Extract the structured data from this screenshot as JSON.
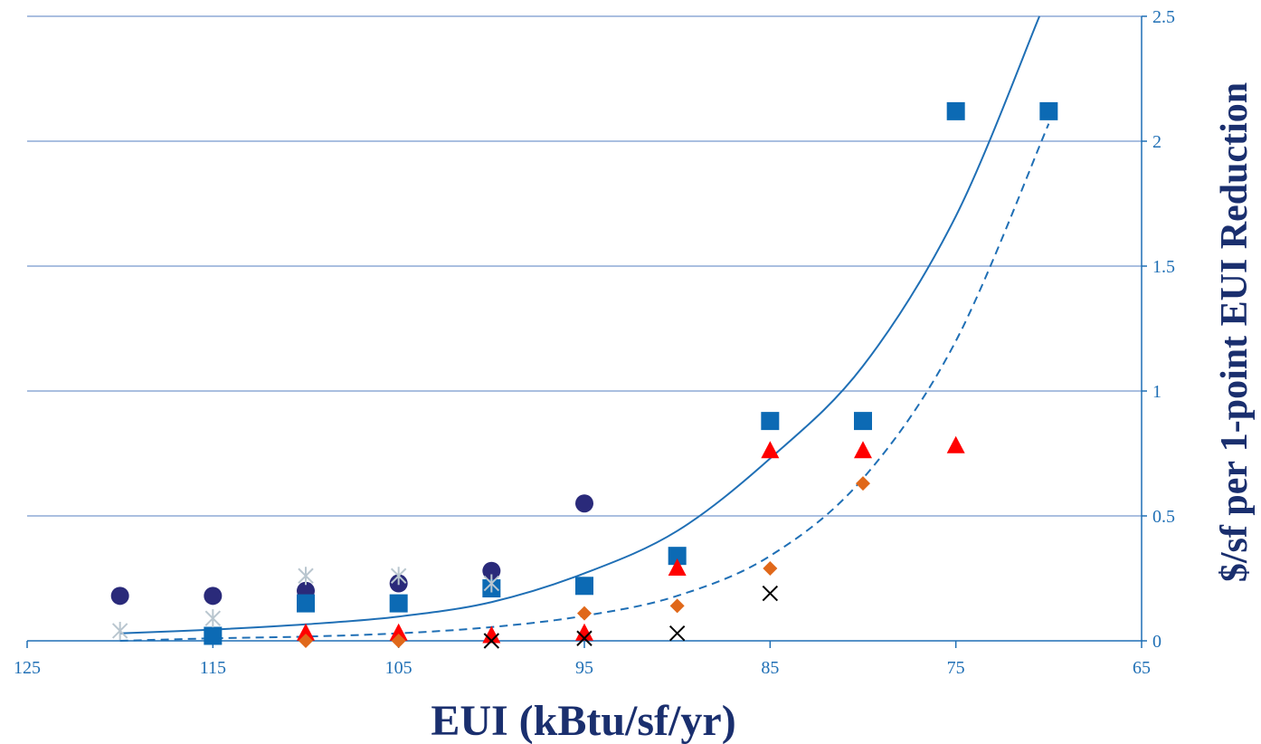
{
  "chart_data": {
    "type": "scatter",
    "title": "",
    "xlabel": "EUI (kBtu/sf/yr)",
    "ylabel": "$/sf per 1-point EUI Reduction",
    "xlim": [
      125,
      65
    ],
    "x_reversed": true,
    "ylim": [
      0,
      2.5
    ],
    "y_axis_side": "right",
    "grid": "horizontal",
    "legend": "none",
    "x_ticks": [
      "125",
      "115",
      "105",
      "95",
      "85",
      "75",
      "65"
    ],
    "y_ticks": [
      "0",
      "0.5",
      "1",
      "1.5",
      "2",
      "2.5"
    ],
    "colors": {
      "axis": "#1f6fb5",
      "grid": "#8eaad6",
      "title": "#1a2f6e",
      "square": "#0c6ab4",
      "circle": "#2a2a7a",
      "triangle": "#ff0000",
      "diamond": "#e0681a",
      "x_marker": "#000000",
      "star": "#b9c6cf",
      "trend": "#1f6fb5"
    },
    "series": [
      {
        "marker": "circle",
        "color": "#2a2a7a",
        "points": [
          [
            120,
            0.18
          ],
          [
            115,
            0.18
          ],
          [
            110,
            0.2
          ],
          [
            105,
            0.23
          ],
          [
            100,
            0.28
          ],
          [
            95,
            0.55
          ]
        ]
      },
      {
        "marker": "square",
        "color": "#0c6ab4",
        "points": [
          [
            115,
            0.02
          ],
          [
            110,
            0.15
          ],
          [
            105,
            0.15
          ],
          [
            100,
            0.21
          ],
          [
            95,
            0.22
          ],
          [
            90,
            0.34
          ],
          [
            85,
            0.88
          ],
          [
            80,
            0.88
          ],
          [
            75,
            2.12
          ],
          [
            70,
            2.12
          ]
        ]
      },
      {
        "marker": "star",
        "color": "#b9c6cf",
        "points": [
          [
            120,
            0.04
          ],
          [
            115,
            0.09
          ],
          [
            110,
            0.26
          ],
          [
            105,
            0.26
          ],
          [
            100,
            0.23
          ]
        ]
      },
      {
        "marker": "triangle",
        "color": "#ff0000",
        "points": [
          [
            110,
            0.03
          ],
          [
            105,
            0.03
          ],
          [
            100,
            0.02
          ],
          [
            95,
            0.03
          ],
          [
            90,
            0.29
          ],
          [
            85,
            0.76
          ],
          [
            80,
            0.76
          ],
          [
            75,
            0.78
          ]
        ]
      },
      {
        "marker": "diamond",
        "color": "#e0681a",
        "points": [
          [
            110,
            0.0
          ],
          [
            105,
            0.0
          ],
          [
            95,
            0.11
          ],
          [
            90,
            0.14
          ],
          [
            85,
            0.29
          ],
          [
            80,
            0.63
          ]
        ]
      },
      {
        "marker": "x",
        "color": "#000000",
        "points": [
          [
            100,
            0.0
          ],
          [
            95,
            0.01
          ],
          [
            90,
            0.03
          ],
          [
            85,
            0.19
          ]
        ]
      }
    ],
    "trendlines": [
      {
        "style": "solid",
        "color": "#1f6fb5",
        "points": [
          [
            120,
            0.03
          ],
          [
            115,
            0.045
          ],
          [
            110,
            0.066
          ],
          [
            105,
            0.097
          ],
          [
            100,
            0.155
          ],
          [
            95,
            0.27
          ],
          [
            90,
            0.44
          ],
          [
            85,
            0.73
          ],
          [
            80,
            1.1
          ],
          [
            75,
            1.7
          ],
          [
            70.5,
            2.5
          ]
        ]
      },
      {
        "style": "dashed",
        "color": "#1f6fb5",
        "points": [
          [
            120,
            0.0
          ],
          [
            115,
            0.01
          ],
          [
            110,
            0.017
          ],
          [
            105,
            0.03
          ],
          [
            100,
            0.055
          ],
          [
            95,
            0.1
          ],
          [
            90,
            0.18
          ],
          [
            85,
            0.34
          ],
          [
            80,
            0.65
          ],
          [
            75,
            1.2
          ],
          [
            70,
            2.07
          ]
        ]
      }
    ]
  }
}
